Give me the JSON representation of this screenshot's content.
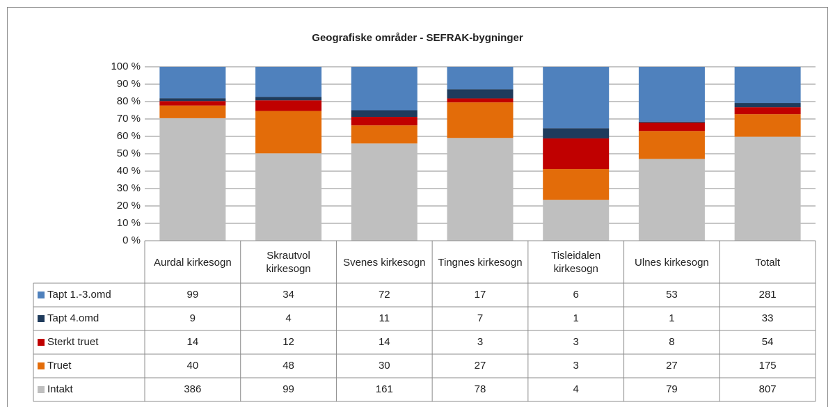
{
  "chart_data": {
    "type": "bar",
    "stacking": "percent",
    "title": "Geografiske områder - SEFRAK-bygninger",
    "categories": [
      "Aurdal kirkesogn",
      "Skrautvol kirkesogn",
      "Svenes kirkesogn",
      "Tingnes kirkesogn",
      "Tisleidalen kirkesogn",
      "Ulnes kirkesogn",
      "Totalt"
    ],
    "series": [
      {
        "name": "Tapt 1.-3.omd",
        "color": "#4f81bd",
        "values": [
          99,
          34,
          72,
          17,
          6,
          53,
          281
        ]
      },
      {
        "name": "Tapt 4.omd",
        "color": "#1f3b5c",
        "values": [
          9,
          4,
          11,
          7,
          1,
          1,
          33
        ]
      },
      {
        "name": "Sterkt truet",
        "color": "#c00000",
        "values": [
          14,
          12,
          14,
          3,
          3,
          8,
          54
        ]
      },
      {
        "name": "Truet",
        "color": "#e36c09",
        "values": [
          40,
          48,
          30,
          27,
          3,
          27,
          175
        ]
      },
      {
        "name": "Intakt",
        "color": "#bfbfbf",
        "values": [
          386,
          99,
          161,
          78,
          4,
          79,
          807
        ]
      }
    ],
    "ylim": [
      0,
      100
    ],
    "yticks": [
      {
        "value": 0,
        "label": "0 %"
      },
      {
        "value": 10,
        "label": "10 %"
      },
      {
        "value": 20,
        "label": "20 %"
      },
      {
        "value": 30,
        "label": "30 %"
      },
      {
        "value": 40,
        "label": "40 %"
      },
      {
        "value": 50,
        "label": "50 %"
      },
      {
        "value": 60,
        "label": "60 %"
      },
      {
        "value": 70,
        "label": "70 %"
      },
      {
        "value": 80,
        "label": "80 %"
      },
      {
        "value": 90,
        "label": "90 %"
      },
      {
        "value": 100,
        "label": "100 %"
      }
    ],
    "grid": true
  }
}
